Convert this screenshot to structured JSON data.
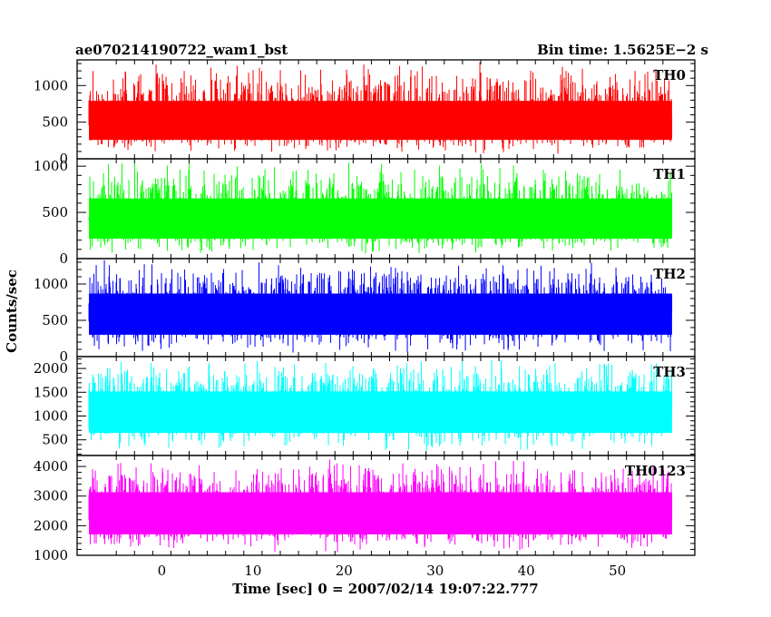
{
  "chart_data": {
    "type": "line",
    "title_left": "ae070214190722_wam1_bst",
    "title_right": "Bin time: 1.5625E−2 s",
    "xlabel": "Time [sec] 0 = 2007/02/14 19:07:22.777",
    "ylabel": "Counts/sec",
    "xlim": [
      -9.3,
      58.5
    ],
    "x_ticks": [
      0,
      10,
      20,
      30,
      40,
      50
    ],
    "x_tick_labels": [
      "0",
      "10",
      "20",
      "30",
      "40",
      "50"
    ],
    "data_x_range": [
      -8,
      56
    ],
    "panels": [
      {
        "name": "TH0",
        "color": "#ff0000",
        "ylim": [
          0,
          1350
        ],
        "yticks": [
          0,
          500,
          1000
        ],
        "ytick_labels": [
          "0",
          "500",
          "1000"
        ],
        "mean": 500,
        "min": 60,
        "max": 1330
      },
      {
        "name": "TH1",
        "color": "#00ff00",
        "ylim": [
          0,
          1080
        ],
        "yticks": [
          0,
          500,
          1000
        ],
        "ytick_labels": [
          "0",
          "500",
          "1000"
        ],
        "mean": 430,
        "min": 40,
        "max": 1060
      },
      {
        "name": "TH2",
        "color": "#0000ff",
        "ylim": [
          0,
          1350
        ],
        "yticks": [
          0,
          500,
          1000
        ],
        "ytick_labels": [
          "0",
          "500",
          "1000"
        ],
        "mean": 620,
        "min": 40,
        "max": 1330
      },
      {
        "name": "TH3",
        "color": "#00ffff",
        "ylim": [
          170,
          2250
        ],
        "yticks": [
          500,
          1000,
          1500,
          2000
        ],
        "ytick_labels": [
          "500",
          "1000",
          "1500",
          "2000"
        ],
        "mean": 1150,
        "min": 230,
        "max": 2200
      },
      {
        "name": "TH0123",
        "color": "#ff00ff",
        "ylim": [
          1000,
          4370
        ],
        "yticks": [
          1000,
          2000,
          3000,
          4000
        ],
        "ytick_labels": [
          "1000",
          "2000",
          "3000",
          "4000"
        ],
        "mean": 2500,
        "min": 1060,
        "max": 4300
      }
    ]
  }
}
